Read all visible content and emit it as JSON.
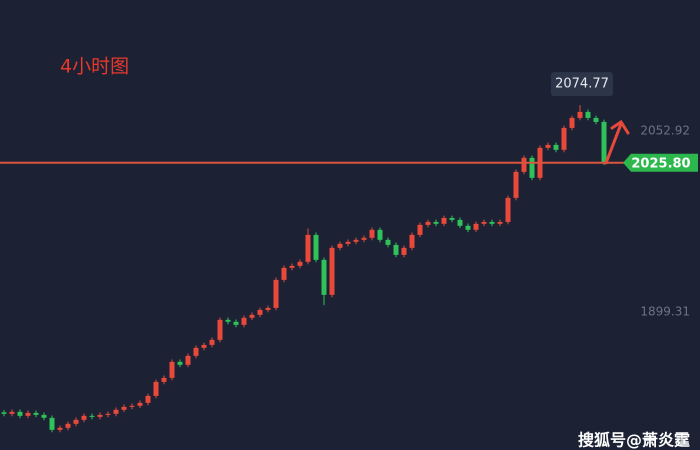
{
  "chart_data": {
    "type": "candlestick",
    "title": "4小时图",
    "watermark": "搜狐号@萧炎霆",
    "up_color": "#e8493b",
    "down_color": "#2fc15a",
    "ylim": [
      1782,
      2164
    ],
    "yticks": [
      2052.92,
      1899.31
    ],
    "current_price": {
      "value": 2025.8,
      "label": "2025.80"
    },
    "high_label": 2074.77,
    "series": [
      {
        "open": [
          1814.0,
          1812.7,
          1814.4,
          1811.0,
          1813.5,
          1811.8,
          1809.3,
          1799.1,
          1800.8,
          1804.2,
          1807.6,
          1811.0,
          1810.1,
          1811.8,
          1812.7,
          1816.1,
          1818.6,
          1819.5,
          1822.0,
          1827.9,
          1839.8,
          1843.2,
          1856.8,
          1854.3,
          1861.9,
          1868.7,
          1871.2,
          1875.5,
          1892.5,
          1890.8,
          1888.2,
          1894.2,
          1896.7,
          1900.9,
          1902.6,
          1926.4,
          1936.6,
          1938.3,
          1941.7,
          1964.6,
          1943.4,
          1913.7,
          1953.6,
          1957.0,
          1958.7,
          1960.4,
          1962.1,
          1968.9,
          1960.4,
          1956.1,
          1947.6,
          1953.6,
          1964.6,
          1973.1,
          1975.6,
          1974.0,
          1979.0,
          1977.3,
          1972.3,
          1968.9,
          1974.0,
          1975.6,
          1974.0,
          1975.6,
          1996.0,
          2018.1,
          2030.0,
          2013.0,
          2038.5,
          2041.0,
          2036.8,
          2055.4,
          2063.9,
          2069.0,
          2063.9,
          2060.5
        ],
        "high": [
          1816.0,
          1816.4,
          1816.4,
          1815.5,
          1815.5,
          1813.8,
          1811.3,
          1802.8,
          1806.2,
          1809.6,
          1813.0,
          1813.0,
          1813.8,
          1814.7,
          1818.1,
          1820.6,
          1821.5,
          1824.0,
          1829.9,
          1841.8,
          1845.2,
          1858.8,
          1858.8,
          1863.9,
          1870.7,
          1873.2,
          1877.5,
          1894.5,
          1894.5,
          1892.8,
          1896.2,
          1898.7,
          1902.9,
          1904.6,
          1928.4,
          1938.6,
          1940.3,
          1943.7,
          1970.0,
          1966.6,
          1945.4,
          1955.6,
          1959.0,
          1960.7,
          1962.4,
          1964.1,
          1970.9,
          1970.9,
          1962.4,
          1958.1,
          1955.6,
          1966.6,
          1975.1,
          1977.6,
          1977.6,
          1981.0,
          1981.0,
          1979.3,
          1974.3,
          1976.0,
          1977.6,
          1977.6,
          1977.6,
          1998.0,
          2020.1,
          2032.0,
          2032.0,
          2040.5,
          2043.0,
          2043.0,
          2057.4,
          2065.9,
          2074.77,
          2071.0,
          2065.9,
          2062.5
        ],
        "low": [
          1810.7,
          1810.7,
          1809.0,
          1809.0,
          1809.8,
          1807.3,
          1797.1,
          1797.1,
          1798.8,
          1802.2,
          1805.6,
          1808.1,
          1808.1,
          1809.8,
          1810.7,
          1814.1,
          1816.6,
          1817.5,
          1820.0,
          1825.9,
          1837.8,
          1841.2,
          1852.3,
          1852.3,
          1859.9,
          1866.7,
          1869.2,
          1873.5,
          1888.8,
          1886.2,
          1886.2,
          1892.2,
          1894.7,
          1898.9,
          1900.6,
          1924.4,
          1934.6,
          1936.3,
          1939.7,
          1941.4,
          1905.0,
          1911.7,
          1951.6,
          1955.0,
          1956.7,
          1958.4,
          1960.1,
          1958.4,
          1954.1,
          1945.6,
          1945.6,
          1951.6,
          1962.6,
          1971.1,
          1972.0,
          1972.0,
          1975.3,
          1970.3,
          1966.9,
          1966.9,
          1972.0,
          1972.0,
          1972.0,
          1973.6,
          1994.0,
          2016.1,
          2011.0,
          2011.0,
          2036.5,
          2034.8,
          2034.8,
          2053.4,
          2061.9,
          2061.9,
          2058.5,
          2023.8
        ],
        "close": [
          1812.7,
          1814.4,
          1811.0,
          1813.5,
          1811.8,
          1809.3,
          1799.1,
          1800.8,
          1804.2,
          1807.6,
          1811.0,
          1810.1,
          1811.8,
          1812.7,
          1816.1,
          1818.6,
          1819.5,
          1822.0,
          1827.9,
          1839.8,
          1843.2,
          1856.8,
          1854.3,
          1861.9,
          1868.7,
          1871.2,
          1875.5,
          1892.5,
          1890.8,
          1888.2,
          1894.2,
          1896.7,
          1900.9,
          1902.6,
          1926.4,
          1936.6,
          1938.3,
          1941.7,
          1964.6,
          1943.4,
          1913.7,
          1953.6,
          1957.0,
          1958.7,
          1960.4,
          1962.1,
          1968.9,
          1960.4,
          1956.1,
          1947.6,
          1953.6,
          1964.6,
          1973.1,
          1975.6,
          1974.0,
          1979.0,
          1977.3,
          1972.3,
          1968.9,
          1974.0,
          1975.6,
          1974.0,
          1975.6,
          1996.0,
          2018.1,
          2030.0,
          2013.0,
          2038.5,
          2041.0,
          2036.8,
          2055.4,
          2063.9,
          2069.0,
          2063.9,
          2060.5,
          2025.8
        ]
      }
    ]
  }
}
